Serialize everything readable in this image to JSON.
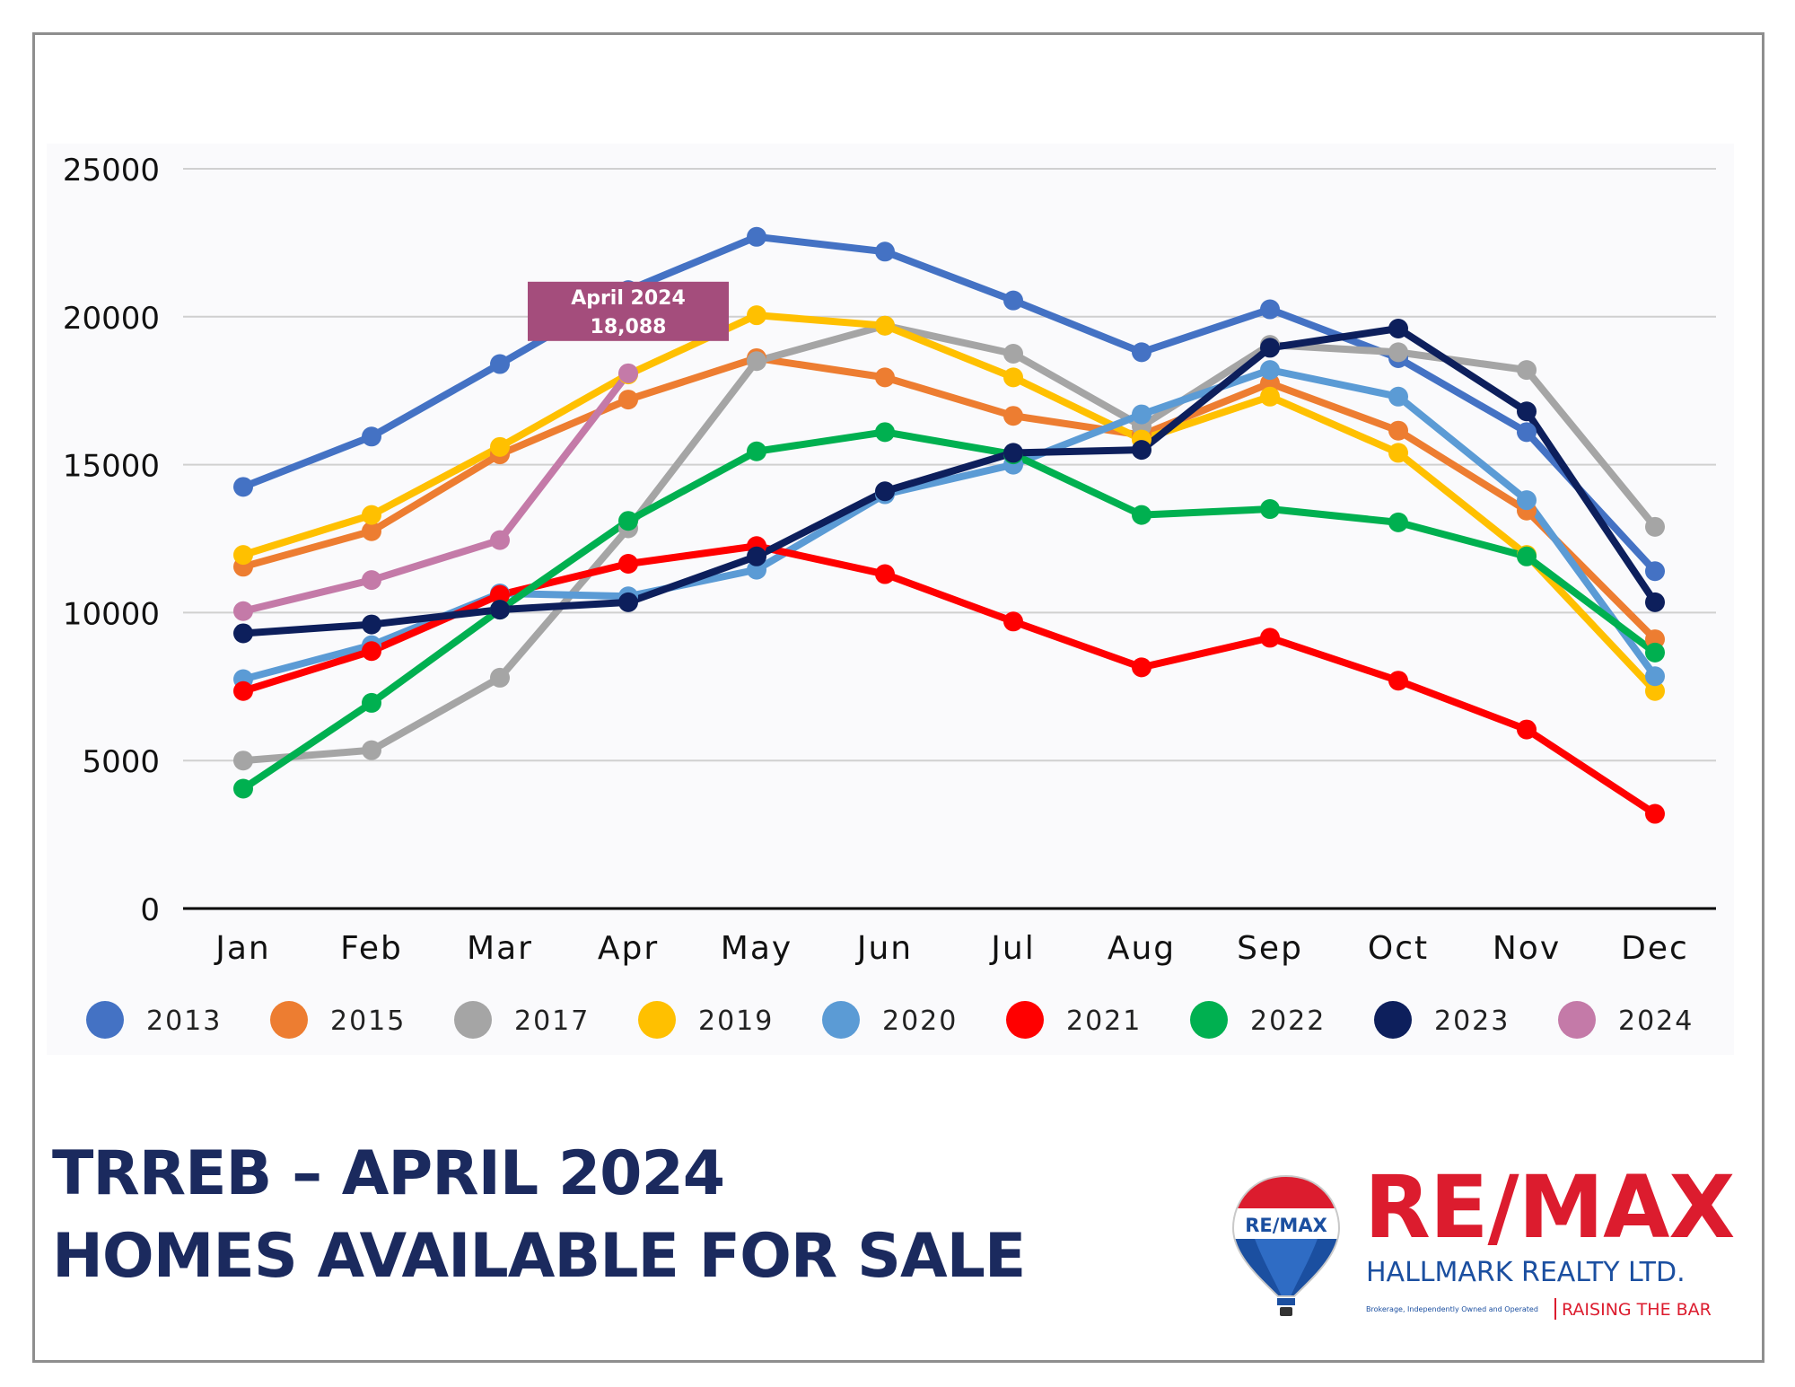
{
  "heading": {
    "line1": "TRREB – APRIL 2024",
    "line2": "HOMES AVAILABLE FOR SALE"
  },
  "logo": {
    "balloon_text": "RE/MAX",
    "wordmark": "RE/MAX",
    "office": "HALLMARK REALTY LTD.",
    "fine_print": "Brokerage, Independently Owned and Operated",
    "tagline": "RAISING THE BAR",
    "colors": {
      "red": "#dc1c2e",
      "blue": "#1b4fa0",
      "white": "#ffffff"
    }
  },
  "chart_data": {
    "type": "line",
    "title": "",
    "xlabel": "",
    "ylabel": "",
    "categories": [
      "Jan",
      "Feb",
      "Mar",
      "Apr",
      "May",
      "Jun",
      "Jul",
      "Aug",
      "Sep",
      "Oct",
      "Nov",
      "Dec"
    ],
    "y_ticks": [
      "0",
      "5000",
      "10000",
      "15000",
      "20000",
      "25000"
    ],
    "ylim": [
      0,
      25000
    ],
    "grid": "horizontal",
    "legend_position": "bottom",
    "series": [
      {
        "name": "2013",
        "color": "#4472c4",
        "values": [
          14250,
          15950,
          18400,
          20900,
          22700,
          22200,
          20550,
          18800,
          20250,
          18600,
          16100,
          11400
        ]
      },
      {
        "name": "2015",
        "color": "#ed7d31",
        "values": [
          11550,
          12750,
          15350,
          17200,
          18600,
          17950,
          16650,
          16000,
          17750,
          16150,
          13450,
          9100
        ]
      },
      {
        "name": "2017",
        "color": "#a5a5a5",
        "values": [
          5000,
          5350,
          7800,
          12850,
          18500,
          19700,
          18750,
          16300,
          19050,
          18800,
          18200,
          12900
        ]
      },
      {
        "name": "2019",
        "color": "#ffc000",
        "values": [
          11950,
          13300,
          15600,
          18050,
          20050,
          19700,
          17950,
          15850,
          17300,
          15400,
          11950,
          7350
        ]
      },
      {
        "name": "2020",
        "color": "#5b9bd5",
        "values": [
          7750,
          8900,
          10650,
          10550,
          11450,
          14000,
          15000,
          16700,
          18200,
          17300,
          13800,
          7850
        ]
      },
      {
        "name": "2021",
        "color": "#ff0000",
        "values": [
          7350,
          8700,
          10600,
          11650,
          12250,
          11300,
          9700,
          8150,
          9150,
          7700,
          6050,
          3200
        ]
      },
      {
        "name": "2022",
        "color": "#00b050",
        "values": [
          4050,
          6950,
          10100,
          13100,
          15450,
          16100,
          15350,
          13300,
          13500,
          13050,
          11900,
          8650
        ]
      },
      {
        "name": "2023",
        "color": "#0d1f5c",
        "values": [
          9300,
          9600,
          10100,
          10350,
          11900,
          14100,
          15400,
          15500,
          18950,
          19600,
          16800,
          10350
        ]
      },
      {
        "name": "2024",
        "color": "#c47aa8",
        "values": [
          10050,
          11100,
          12450,
          18088,
          null,
          null,
          null,
          null,
          null,
          null,
          null,
          null
        ]
      }
    ],
    "annotation": {
      "line1": "April 2024",
      "line2": "18,088",
      "category": "Apr",
      "value": 18088,
      "color": "#a44d7c"
    }
  }
}
